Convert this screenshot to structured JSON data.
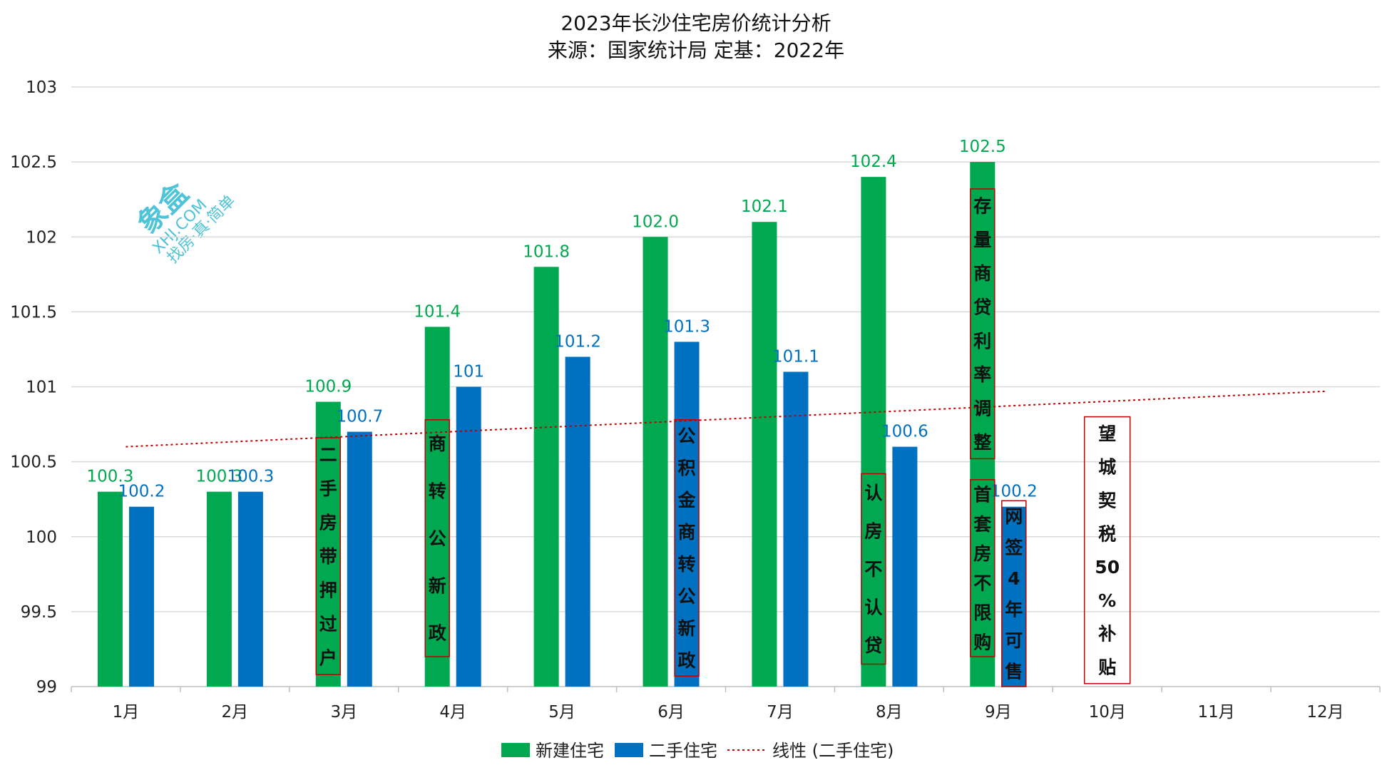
{
  "chart_data": {
    "type": "bar",
    "title": "2023年长沙住宅房价统计分析",
    "subtitle": "来源：国家统计局 定基：2022年",
    "categories": [
      "1月",
      "2月",
      "3月",
      "4月",
      "5月",
      "6月",
      "7月",
      "8月",
      "9月",
      "10月",
      "11月",
      "12月"
    ],
    "ylim": [
      99,
      103
    ],
    "yticks": [
      "99",
      "99.5",
      "100",
      "100.5",
      "101",
      "101.5",
      "102",
      "102.5",
      "103"
    ],
    "grid": true,
    "legend_position": "bottom",
    "series": [
      {
        "name": "新建住宅",
        "color": "#00A84F",
        "values": [
          100.3,
          100.3,
          100.9,
          101.4,
          101.8,
          102.0,
          102.1,
          102.4,
          102.5,
          null,
          null,
          null
        ],
        "labels": [
          "100.3",
          "100.3",
          "100.9",
          "101.4",
          "101.8",
          "102.0",
          "102.1",
          "102.4",
          "102.5",
          "",
          "",
          ""
        ]
      },
      {
        "name": "二手住宅",
        "color": "#0070C0",
        "values": [
          100.2,
          100.3,
          100.7,
          101,
          101.2,
          101.3,
          101.1,
          100.6,
          100.2,
          null,
          null,
          null
        ],
        "labels": [
          "100.2",
          "100.3",
          "100.7",
          "101",
          "101.2",
          "101.3",
          "101.1",
          "100.6",
          "100.2",
          "",
          "",
          ""
        ]
      }
    ],
    "trendline": {
      "name": "线性 (二手住宅)",
      "color": "#C00000",
      "from": 100.6,
      "to": 100.97
    },
    "annotations": [
      {
        "month": "3月",
        "text": "二手房带押过户"
      },
      {
        "month": "4月",
        "text": "商转公新政"
      },
      {
        "month": "6月",
        "text": "公积金商转公新政"
      },
      {
        "month": "8月",
        "text": "认房不认贷"
      },
      {
        "month": "9月",
        "text": "存量商贷利率调整"
      },
      {
        "month": "9月",
        "text": "首套房不限购"
      },
      {
        "month": "9月",
        "text": "网签4年可售"
      },
      {
        "month": "10月",
        "text": "望城契税50%补贴"
      }
    ]
  },
  "watermark": {
    "logo": "象盒",
    "site": "XHJ.COM",
    "slogan": "找房·真·简单"
  }
}
